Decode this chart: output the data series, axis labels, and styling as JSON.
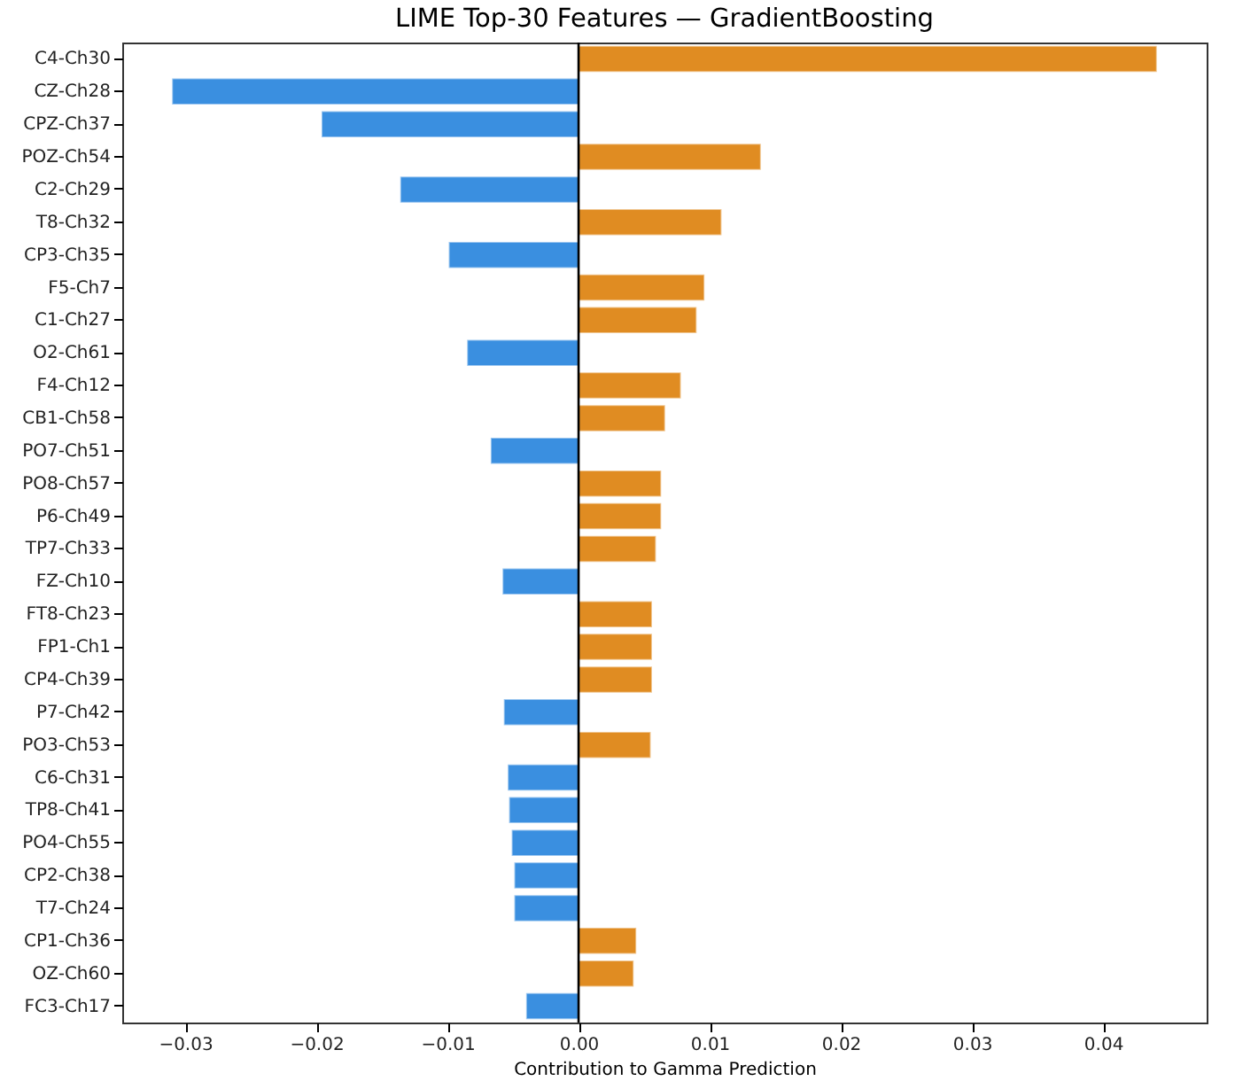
{
  "chart_data": {
    "type": "bar",
    "orientation": "horizontal",
    "title": "LIME Top-30 Features — GradientBoosting",
    "xlabel": "Contribution to Gamma Prediction",
    "categories": [
      "C4-Ch30",
      "CZ-Ch28",
      "CPZ-Ch37",
      "POZ-Ch54",
      "C2-Ch29",
      "T8-Ch32",
      "CP3-Ch35",
      "F5-Ch7",
      "C1-Ch27",
      "O2-Ch61",
      "F4-Ch12",
      "CB1-Ch58",
      "PO7-Ch51",
      "PO8-Ch57",
      "P6-Ch49",
      "TP7-Ch33",
      "FZ-Ch10",
      "FT8-Ch23",
      "FP1-Ch1",
      "CP4-Ch39",
      "P7-Ch42",
      "PO3-Ch53",
      "C6-Ch31",
      "TP8-Ch41",
      "PO4-Ch55",
      "CP2-Ch38",
      "T7-Ch24",
      "CP1-Ch36",
      "OZ-Ch60",
      "FC3-Ch17"
    ],
    "values": [
      0.0441,
      -0.031,
      -0.0196,
      0.0139,
      -0.0136,
      0.0109,
      -0.0099,
      0.0096,
      0.009,
      -0.0085,
      0.0078,
      0.0066,
      -0.0067,
      0.0063,
      0.0063,
      0.0059,
      -0.0058,
      0.0056,
      0.0056,
      0.0056,
      -0.0057,
      0.0055,
      -0.0054,
      -0.0053,
      -0.0051,
      -0.0049,
      -0.0049,
      0.0044,
      0.0042,
      -0.004
    ],
    "colors": [
      "#e08c22",
      "#3a8fe0",
      "#3a8fe0",
      "#e08c22",
      "#3a8fe0",
      "#e08c22",
      "#3a8fe0",
      "#e08c22",
      "#e08c22",
      "#3a8fe0",
      "#e08c22",
      "#e08c22",
      "#3a8fe0",
      "#e08c22",
      "#e08c22",
      "#e08c22",
      "#3a8fe0",
      "#e08c22",
      "#e08c22",
      "#e08c22",
      "#3a8fe0",
      "#e08c22",
      "#3a8fe0",
      "#3a8fe0",
      "#3a8fe0",
      "#3a8fe0",
      "#3a8fe0",
      "#e08c22",
      "#e08c22",
      "#3a8fe0"
    ],
    "xlim": [
      -0.0348,
      0.0479
    ],
    "xticks": [
      {
        "value": -0.03,
        "label": "−0.03"
      },
      {
        "value": -0.02,
        "label": "−0.02"
      },
      {
        "value": -0.01,
        "label": "−0.01"
      },
      {
        "value": 0,
        "label": "0.00"
      },
      {
        "value": 0.01,
        "label": "0.01"
      },
      {
        "value": 0.02,
        "label": "0.02"
      },
      {
        "value": 0.03,
        "label": "0.03"
      },
      {
        "value": 0.04,
        "label": "0.04"
      }
    ],
    "ref_lines": [
      {
        "axis": "x",
        "value": 0,
        "color": "#000000"
      }
    ],
    "grid": false
  }
}
